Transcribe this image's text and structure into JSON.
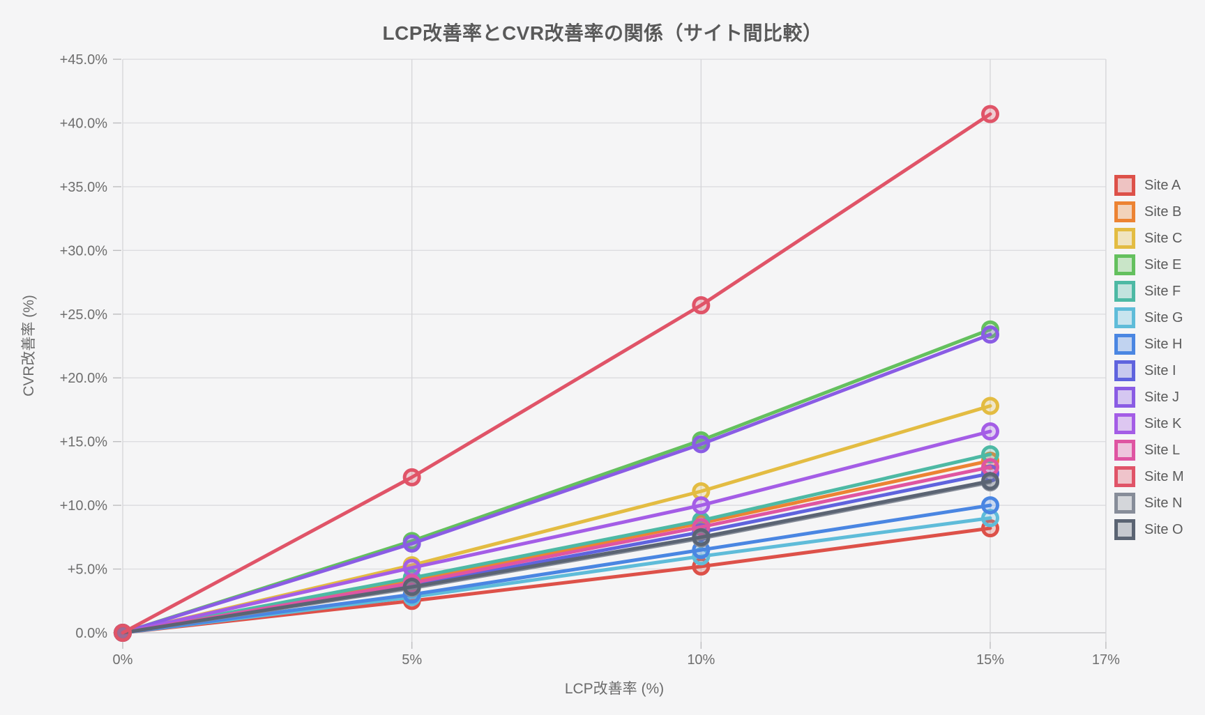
{
  "page": {
    "background": "#f5f5f6"
  },
  "chart": {
    "title": "LCP改善率とCVR改善率の関係（サイト間比較）",
    "x_axis": {
      "title": "LCP改善率 (%)"
    },
    "y_axis": {
      "title": "CVR改善率 (%)"
    }
  },
  "chart_data": {
    "type": "line",
    "title": "LCP改善率とCVR改善率の関係（サイト間比較）",
    "xlabel": "LCP改善率 (%)",
    "ylabel": "CVR改善率 (%)",
    "x": [
      0,
      5,
      10,
      15
    ],
    "xlim": [
      0,
      17
    ],
    "ylim": [
      0,
      45
    ],
    "grid": true,
    "legend_position": "right",
    "x_tick_values": [
      0,
      5,
      10,
      15,
      17
    ],
    "x_tick_labels": [
      "0%",
      "5%",
      "10%",
      "15%",
      "17%"
    ],
    "y_tick_values": [
      0,
      5,
      10,
      15,
      20,
      25,
      30,
      35,
      40,
      45
    ],
    "y_tick_labels": [
      "0.0%",
      "+5.0%",
      "+10.0%",
      "+15.0%",
      "+20.0%",
      "+25.0%",
      "+30.0%",
      "+35.0%",
      "+40.0%",
      "+45.0%"
    ],
    "draw_last": "Site M",
    "series": [
      {
        "name": "Site A",
        "color": "#dd5149",
        "values": [
          0,
          2.5,
          5.2,
          8.2
        ]
      },
      {
        "name": "Site B",
        "color": "#ec8333",
        "values": [
          0,
          4.1,
          8.6,
          13.5
        ]
      },
      {
        "name": "Site C",
        "color": "#e3bc42",
        "values": [
          0,
          5.3,
          11.1,
          17.8
        ]
      },
      {
        "name": "Site E",
        "color": "#64c05e",
        "values": [
          0,
          7.2,
          15.1,
          23.8
        ]
      },
      {
        "name": "Site F",
        "color": "#4db9a4",
        "values": [
          0,
          4.3,
          8.8,
          14.0
        ]
      },
      {
        "name": "Site G",
        "color": "#5fbcd9",
        "values": [
          0,
          2.8,
          6.0,
          9.0
        ]
      },
      {
        "name": "Site H",
        "color": "#4a86e2",
        "values": [
          0,
          3.0,
          6.5,
          10.0
        ]
      },
      {
        "name": "Site I",
        "color": "#5f63de",
        "values": [
          0,
          3.7,
          7.9,
          12.5
        ]
      },
      {
        "name": "Site J",
        "color": "#8a5ce4",
        "values": [
          0,
          7.0,
          14.8,
          23.4
        ]
      },
      {
        "name": "Site K",
        "color": "#a45de6",
        "values": [
          0,
          5.1,
          10.0,
          15.8
        ]
      },
      {
        "name": "Site L",
        "color": "#df55a2",
        "values": [
          0,
          3.9,
          8.3,
          13.0
        ]
      },
      {
        "name": "Site M",
        "color": "#e05468",
        "values": [
          0,
          12.2,
          25.7,
          40.7
        ]
      },
      {
        "name": "Site N",
        "color": "#878d99",
        "values": [
          0,
          3.5,
          7.4,
          11.8
        ]
      },
      {
        "name": "Site O",
        "color": "#5b6473",
        "values": [
          0,
          3.6,
          7.5,
          11.9
        ]
      }
    ]
  }
}
